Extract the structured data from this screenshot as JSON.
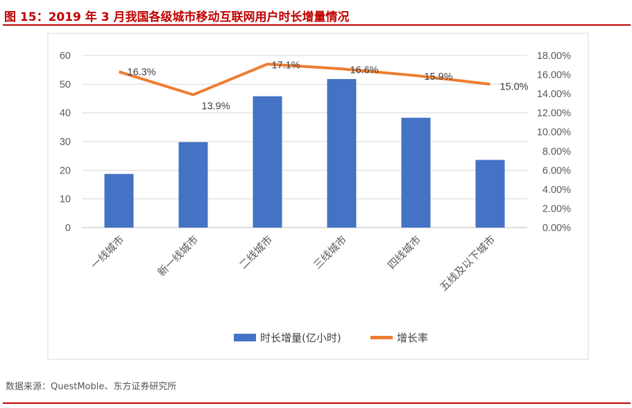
{
  "figure": {
    "title": "图 15：2019 年 3 月我国各级城市移动互联网用户时长增量情况",
    "source": "数据来源：QuestMoble、东方证券研究所"
  },
  "colors": {
    "accent": "#c00000",
    "bar": "#4472c4",
    "line": "#ed7d31",
    "axis_text": "#595959"
  },
  "chart_data": {
    "type": "bar+line",
    "categories": [
      "一线城市",
      "新一线城市",
      "二线城市",
      "三线城市",
      "四线城市",
      "五线及以下城市"
    ],
    "series": [
      {
        "name": "时长增量(亿小时)",
        "type": "bar",
        "axis": "left",
        "values": [
          18.7,
          29.8,
          45.8,
          51.8,
          38.3,
          23.6
        ]
      },
      {
        "name": "增长率",
        "type": "line",
        "axis": "right",
        "values": [
          16.3,
          13.9,
          17.1,
          16.6,
          15.9,
          15.0
        ],
        "labels": [
          "16.3%",
          "13.9%",
          "17.1%",
          "16.6%",
          "15.9%",
          "15.0%"
        ]
      }
    ],
    "y_left": {
      "ylim": [
        0,
        60
      ],
      "ticks": [
        "0",
        "10",
        "20",
        "30",
        "40",
        "50",
        "60"
      ]
    },
    "y_right": {
      "ylim": [
        0,
        18
      ],
      "ticks": [
        "0.00%",
        "2.00%",
        "4.00%",
        "6.00%",
        "8.00%",
        "10.00%",
        "12.00%",
        "14.00%",
        "16.00%",
        "18.00%"
      ]
    },
    "grid": true,
    "legend": "bottom"
  }
}
